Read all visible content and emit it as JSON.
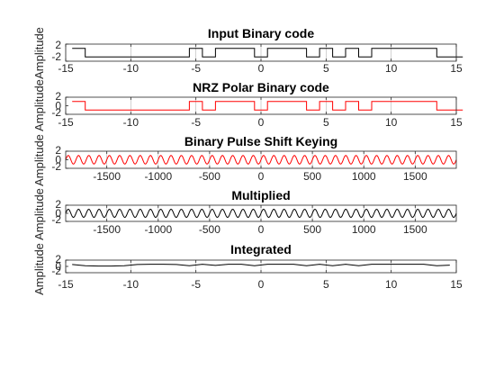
{
  "chart_data": [
    {
      "type": "line",
      "title": "Input Binary code",
      "ylabel": "Amplitude",
      "xlim": [
        -15,
        15
      ],
      "ylim": [
        -2,
        2
      ],
      "xticks": [
        -15,
        -10,
        -5,
        0,
        5,
        10,
        15
      ],
      "yticks": [
        2,
        -2
      ],
      "grid": true,
      "color": "#000000",
      "step_start": -14.5,
      "step_width": 1,
      "bits": [
        1,
        0,
        0,
        0,
        0,
        0,
        0,
        0,
        0,
        1,
        0,
        1,
        1,
        1,
        0,
        1,
        1,
        1,
        0,
        1,
        0,
        1,
        0,
        1,
        1,
        1,
        1,
        1,
        0,
        0
      ]
    },
    {
      "type": "line",
      "title": "NRZ Polar Binary code",
      "ylabel": "Amplitude",
      "xlim": [
        -15,
        15
      ],
      "ylim": [
        -2,
        2
      ],
      "xticks": [
        -15,
        -10,
        -5,
        0,
        5,
        10,
        15
      ],
      "yticks": [
        2,
        0,
        -2
      ],
      "grid": true,
      "color": "#ff0000",
      "step_start": -14.5,
      "step_width": 1,
      "levels": [
        1,
        -1,
        -1,
        -1,
        -1,
        -1,
        -1,
        -1,
        -1,
        1,
        -1,
        1,
        1,
        1,
        -1,
        1,
        1,
        1,
        -1,
        1,
        -1,
        1,
        -1,
        1,
        1,
        1,
        1,
        1,
        -1,
        -1
      ]
    },
    {
      "type": "line",
      "title": "Binary Pulse Shift Keying",
      "ylabel": "Amplitude",
      "xlim": [
        -1900,
        1900
      ],
      "ylim": [
        -2,
        2
      ],
      "xticks": [
        -1500,
        -1000,
        -500,
        0,
        500,
        1000,
        1500
      ],
      "yticks": [
        2,
        0,
        -2
      ],
      "grid": true,
      "color": "#ff0000",
      "amplitude": 1,
      "cycles": 38
    },
    {
      "type": "line",
      "title": "Multiplied",
      "ylabel": "Amplitude",
      "xlim": [
        -1900,
        1900
      ],
      "ylim": [
        -2,
        2
      ],
      "xticks": [
        -1500,
        -1000,
        -500,
        0,
        500,
        1000,
        1500
      ],
      "yticks": [
        2,
        0,
        -2
      ],
      "grid": true,
      "color": "#000000",
      "amplitude": 1,
      "cycles": 38
    },
    {
      "type": "line",
      "title": "Integrated",
      "ylabel": "Amplitude",
      "xlim": [
        -15,
        15
      ],
      "ylim": [
        -2,
        2
      ],
      "xticks": [
        -15,
        -10,
        -5,
        0,
        5,
        10,
        15
      ],
      "yticks": [
        2,
        0,
        -2
      ],
      "grid": true,
      "color": "#000000",
      "x": [
        -14.5,
        -13.5,
        -12.5,
        -11.5,
        -10.5,
        -9.5,
        -8.5,
        -7.5,
        -6.5,
        -5.5,
        -4.5,
        -3.5,
        -2.5,
        -1.5,
        -0.5,
        0.5,
        1.5,
        2.5,
        3.5,
        4.5,
        5.5,
        6.5,
        7.5,
        8.5,
        9.5,
        10.5,
        11.5,
        12.5,
        13.5,
        14.5
      ],
      "y": [
        0.6,
        0.2,
        0.1,
        0.1,
        0.2,
        0.6,
        0.7,
        0.7,
        0.6,
        0.2,
        0.7,
        0.3,
        0.7,
        0.7,
        0.2,
        0.7,
        0.7,
        0.7,
        0.2,
        0.7,
        0.2,
        0.7,
        0.2,
        0.7,
        0.7,
        0.7,
        0.7,
        0.7,
        0.2,
        0.4
      ]
    }
  ]
}
